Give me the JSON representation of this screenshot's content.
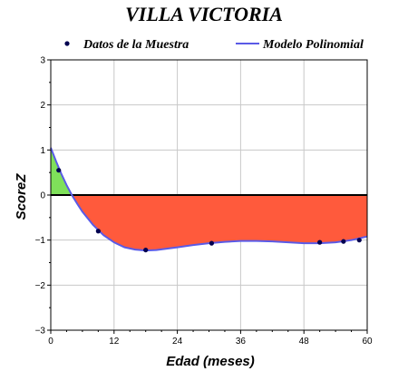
{
  "chart_data": {
    "type": "line",
    "title": "VILLA VICTORIA",
    "xlabel": "Edad (meses)",
    "ylabel": "ScoreZ",
    "xlim": [
      0,
      60
    ],
    "ylim": [
      -3,
      3
    ],
    "xticks": [
      0,
      12,
      24,
      36,
      48,
      60
    ],
    "yticks": [
      -3,
      -2,
      -1,
      0,
      1,
      2,
      3
    ],
    "xtick_labels": [
      "0",
      "12",
      "24",
      "36",
      "48",
      "60"
    ],
    "ytick_labels": [
      "−3",
      "−2",
      "−1",
      "0",
      "1",
      "2",
      "3"
    ],
    "grid": true,
    "legend_position": "top",
    "series": [
      {
        "name": "Datos de la Muestra",
        "kind": "scatter",
        "color": "#000050",
        "x": [
          1.5,
          9,
          18,
          30.5,
          51,
          55.5,
          58.5
        ],
        "y": [
          0.55,
          -0.8,
          -1.22,
          -1.07,
          -1.05,
          -1.03,
          -1.0
        ]
      },
      {
        "name": "Modelo Polinomial",
        "kind": "line",
        "color": "#5a5ae6",
        "x": [
          0,
          1,
          2,
          3,
          4,
          5,
          6,
          8,
          10,
          12,
          14,
          16,
          18,
          20,
          22,
          24,
          27,
          30,
          33,
          36,
          39,
          42,
          45,
          48,
          51,
          54,
          57,
          60
        ],
        "y": [
          1.05,
          0.75,
          0.47,
          0.22,
          0.0,
          -0.19,
          -0.37,
          -0.66,
          -0.89,
          -1.05,
          -1.16,
          -1.21,
          -1.23,
          -1.22,
          -1.19,
          -1.16,
          -1.11,
          -1.07,
          -1.04,
          -1.02,
          -1.02,
          -1.03,
          -1.05,
          -1.07,
          -1.07,
          -1.05,
          -1.0,
          -0.92
        ]
      }
    ],
    "fill_colors": {
      "above_zero": "#7fe05a",
      "below_zero": "#ff5a3c"
    }
  }
}
